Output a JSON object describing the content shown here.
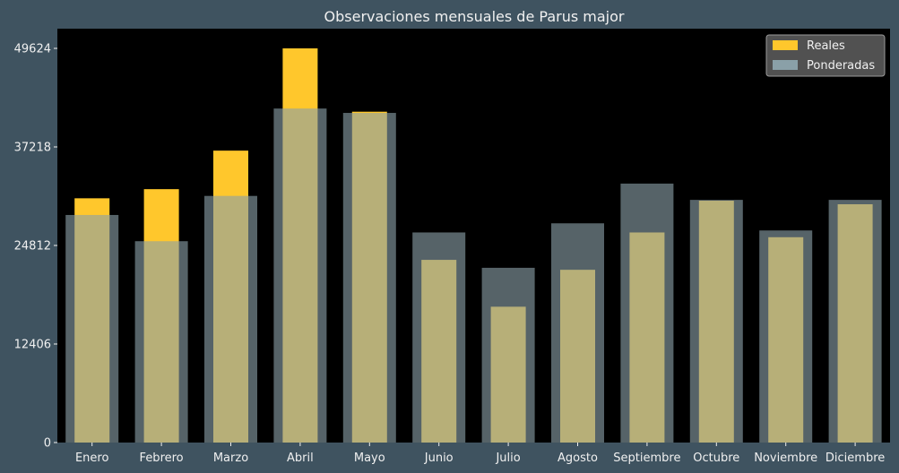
{
  "chart_data": {
    "type": "bar",
    "title": "Observaciones mensuales de Parus major",
    "xlabel": "",
    "ylabel": "",
    "categories": [
      "Enero",
      "Febrero",
      "Marzo",
      "Abril",
      "Mayo",
      "Junio",
      "Julio",
      "Agosto",
      "Septiembre",
      "Octubre",
      "Noviembre",
      "Diciembre"
    ],
    "series": [
      {
        "name": "Reales",
        "color": "#ffc72c",
        "values": [
          30750,
          31900,
          36750,
          49624,
          41650,
          23000,
          17100,
          21750,
          26450,
          30450,
          25850,
          30000
        ]
      },
      {
        "name": "Ponderadas",
        "color": "#8aa0a8",
        "values": [
          28650,
          25350,
          31050,
          42050,
          41500,
          26450,
          22000,
          27600,
          32600,
          30550,
          26700,
          30550
        ]
      }
    ],
    "yticks": [
      0,
      12406,
      24812,
      37218,
      49624
    ],
    "ylim": [
      0,
      52105
    ],
    "legend_position": "top-right",
    "grid": false
  },
  "colors": {
    "figure_background": "#3f5360",
    "plot_background": "#000000",
    "text": "#f0f0f0",
    "overlap": "#d5cf8a"
  }
}
